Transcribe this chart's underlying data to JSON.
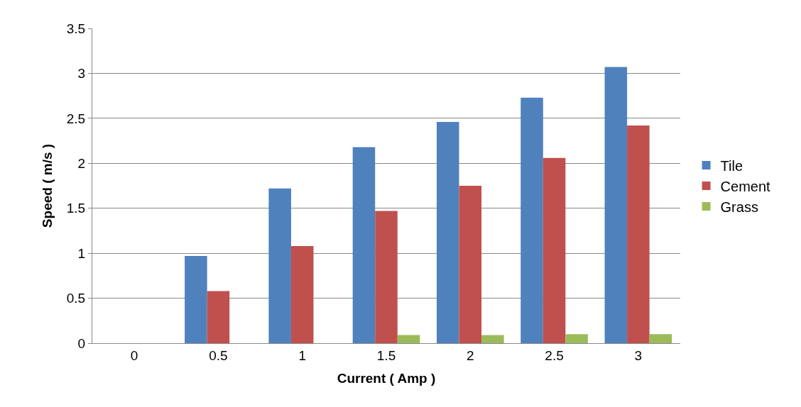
{
  "chart_data": {
    "type": "bar",
    "xlabel": "Current ( Amp )",
    "ylabel": "Speed ( m/s )",
    "categories": [
      "0",
      "0.5",
      "1",
      "1.5",
      "2",
      "2.5",
      "3"
    ],
    "series": [
      {
        "name": "Tile",
        "color": "#4f81bd",
        "values": [
          0,
          0.97,
          1.72,
          2.18,
          2.46,
          2.73,
          3.07
        ]
      },
      {
        "name": "Cement",
        "color": "#c0504d",
        "values": [
          0,
          0.58,
          1.08,
          1.47,
          1.75,
          2.06,
          2.42
        ]
      },
      {
        "name": "Grass",
        "color": "#9bbb59",
        "values": [
          0,
          0,
          0,
          0.09,
          0.09,
          0.1,
          0.1
        ]
      }
    ],
    "ylim": [
      0,
      3.5
    ],
    "yticks": [
      0,
      0.5,
      1,
      1.5,
      2,
      2.5,
      3,
      3.5
    ],
    "grid": "y",
    "legend": "right"
  }
}
